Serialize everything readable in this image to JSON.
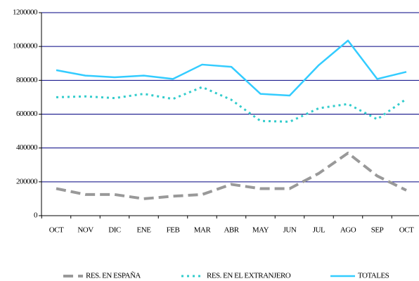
{
  "chart_data": {
    "type": "line",
    "categories": [
      "OCT",
      "NOV",
      "DIC",
      "ENE",
      "FEB",
      "MAR",
      "ABR",
      "MAY",
      "JUN",
      "JUL",
      "AGO",
      "SEP",
      "OCT"
    ],
    "series": [
      {
        "name": "RES. EN ESPAÑA",
        "color": "#999999",
        "style": "dashed",
        "values": [
          160000,
          125000,
          125000,
          100000,
          115000,
          125000,
          185000,
          160000,
          160000,
          250000,
          370000,
          235000,
          150000
        ]
      },
      {
        "name": "RES. EN EL EXTRANJERO",
        "color": "#33cccc",
        "style": "dotted",
        "values": [
          700000,
          705000,
          695000,
          720000,
          690000,
          760000,
          685000,
          560000,
          555000,
          635000,
          660000,
          570000,
          690000
        ]
      },
      {
        "name": "TOTALES",
        "color": "#33ccff",
        "style": "solid",
        "values": [
          860000,
          828000,
          818000,
          828000,
          808000,
          893000,
          880000,
          720000,
          710000,
          890000,
          1035000,
          808000,
          850000
        ]
      }
    ],
    "ylim": [
      0,
      1200000
    ],
    "yticks": [
      0,
      200000,
      400000,
      600000,
      800000,
      1000000,
      1200000
    ],
    "grid": true,
    "legend": "bottom"
  }
}
